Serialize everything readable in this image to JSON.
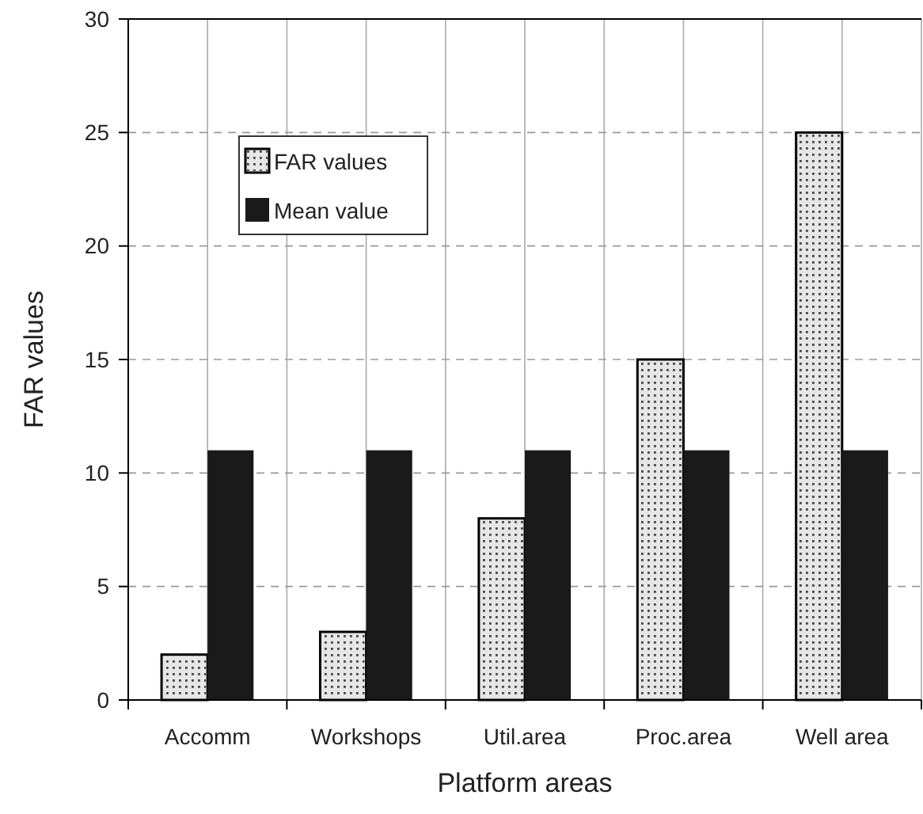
{
  "chart_data": {
    "type": "bar",
    "xlabel": "Platform areas",
    "ylabel": "FAR values",
    "categories": [
      "Accomm",
      "Workshops",
      "Util.area",
      "Proc.area",
      "Well area"
    ],
    "series": [
      {
        "name": "FAR values",
        "color": "#e6e6e6",
        "values": [
          2,
          3,
          8,
          15,
          25
        ]
      },
      {
        "name": "Mean value",
        "color": "#1a1a1a",
        "values": [
          11,
          11,
          11,
          11,
          11
        ]
      }
    ],
    "ylim": [
      0,
      30
    ],
    "yticks": [
      0,
      5,
      10,
      15,
      20,
      25,
      30
    ],
    "grid": true,
    "legend": "top left"
  }
}
